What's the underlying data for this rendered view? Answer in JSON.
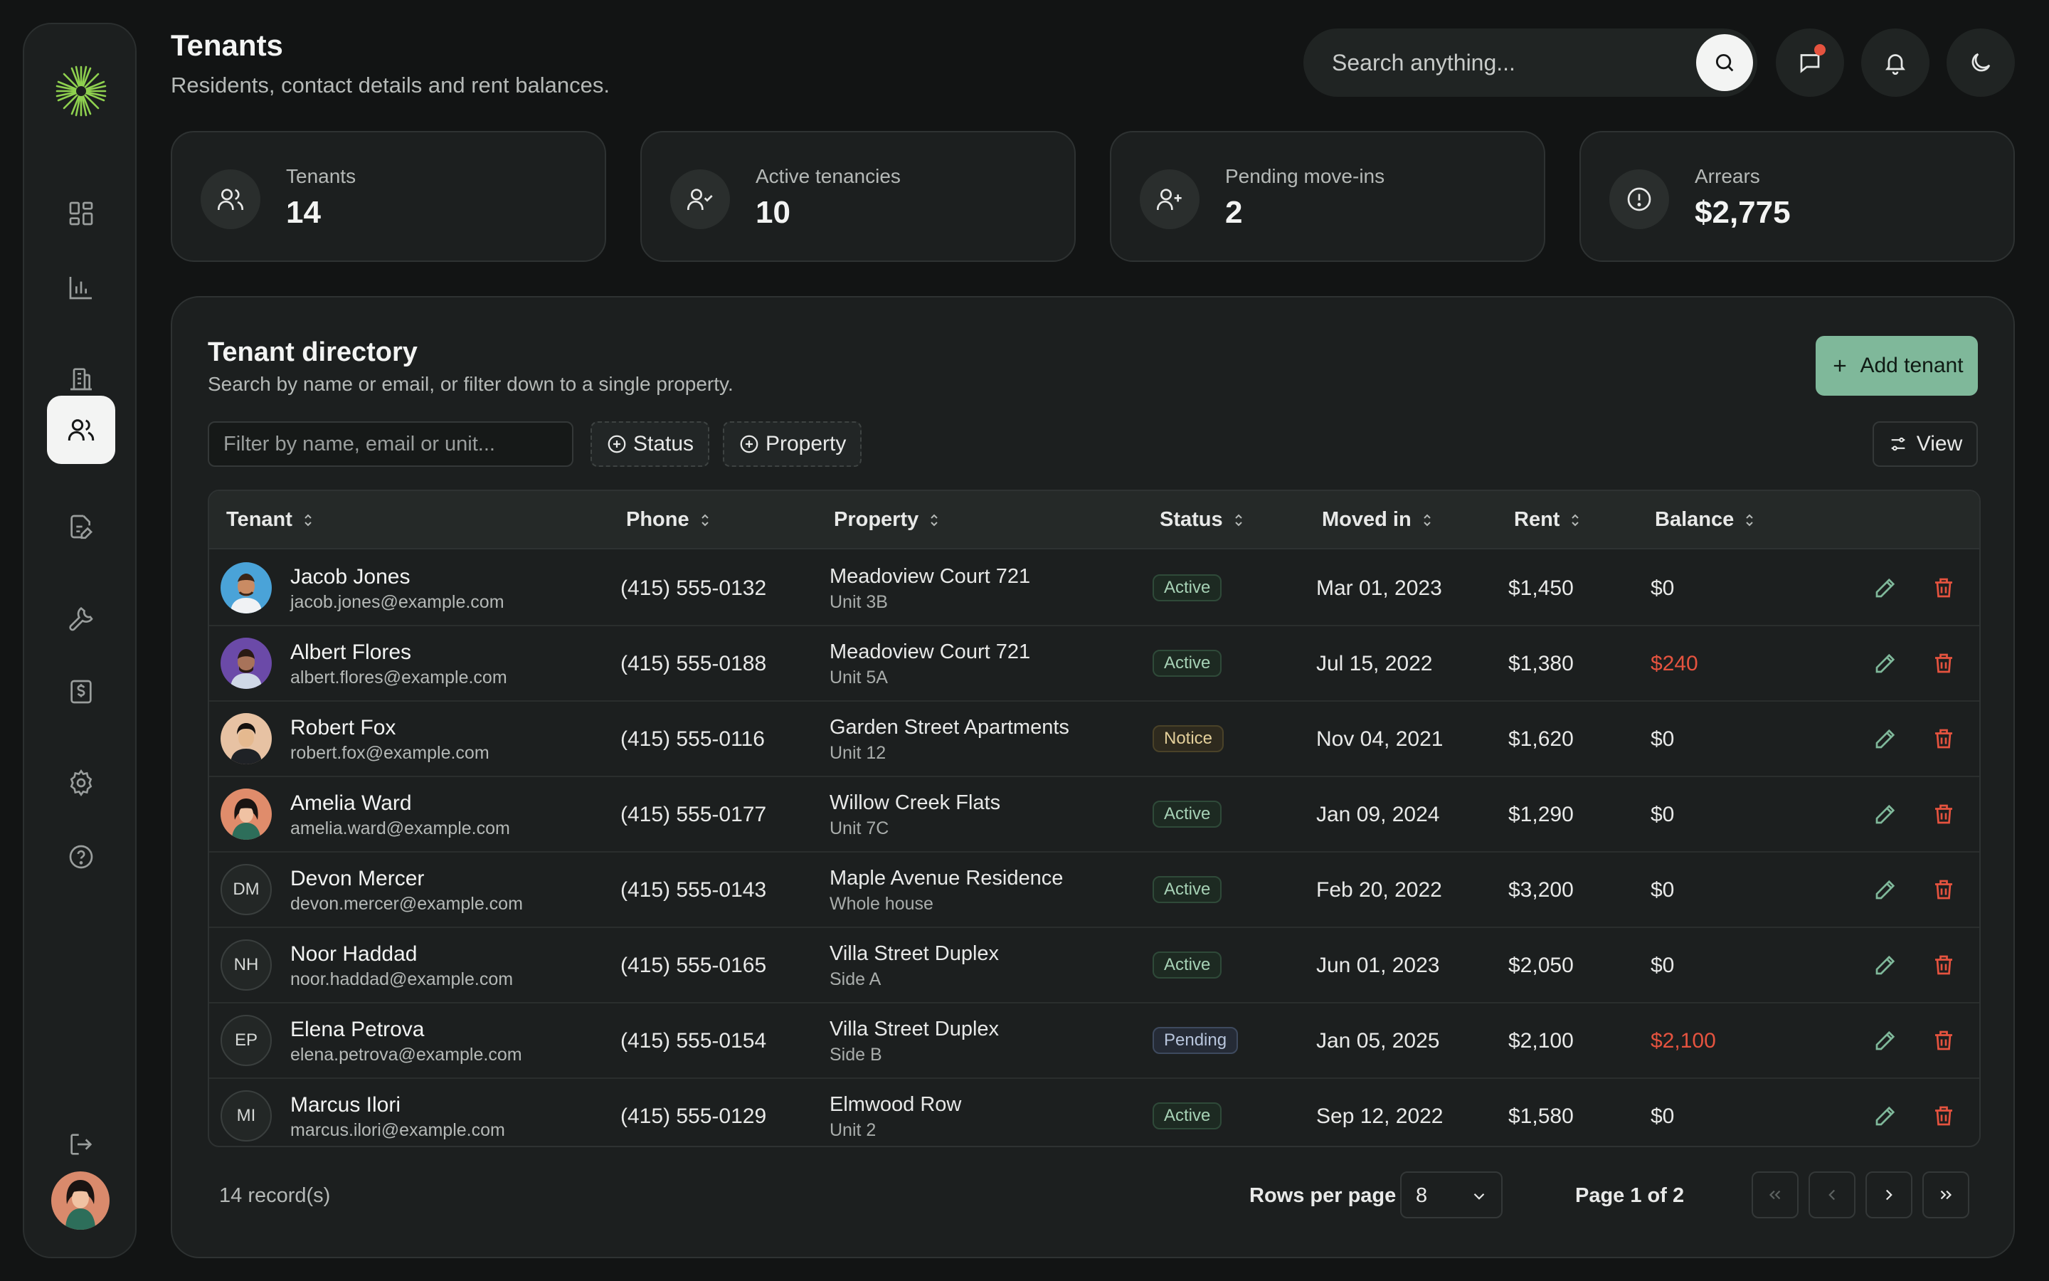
{
  "header": {
    "title": "Tenants",
    "subtitle": "Residents, contact details and rent balances.",
    "search_placeholder": "Search anything..."
  },
  "sidebar": {
    "items": [
      {
        "name": "dashboard",
        "icon": "grid-icon"
      },
      {
        "name": "analytics",
        "icon": "bar-chart-icon"
      },
      {
        "name": "properties",
        "icon": "building-icon"
      },
      {
        "name": "tenants",
        "icon": "users-icon",
        "active": true
      },
      {
        "name": "leases",
        "icon": "document-edit-icon"
      },
      {
        "name": "maintenance",
        "icon": "wrench-icon"
      },
      {
        "name": "payments",
        "icon": "receipt-dollar-icon"
      },
      {
        "name": "settings",
        "icon": "gear-icon"
      },
      {
        "name": "help",
        "icon": "help-circle-icon"
      },
      {
        "name": "logout",
        "icon": "logout-icon"
      }
    ]
  },
  "stats": [
    {
      "label": "Tenants",
      "value": "14",
      "icon": "users-icon"
    },
    {
      "label": "Active tenancies",
      "value": "10",
      "icon": "user-check-icon"
    },
    {
      "label": "Pending move-ins",
      "value": "2",
      "icon": "user-plus-icon"
    },
    {
      "label": "Arrears",
      "value": "$2,775",
      "icon": "alert-circle-icon"
    }
  ],
  "directory": {
    "title": "Tenant directory",
    "subtitle": "Search by name or email, or filter down to a single property.",
    "add_label": "Add tenant",
    "filter_placeholder": "Filter by name, email or unit...",
    "status_chip": "Status",
    "property_chip": "Property",
    "view_label": "View",
    "columns": [
      "Tenant",
      "Phone",
      "Property",
      "Status",
      "Moved in",
      "Rent",
      "Balance"
    ],
    "rows": [
      {
        "name": "Jacob Jones",
        "email": "jacob.jones@example.com",
        "phone": "(415) 555-0132",
        "property": "Meadoview Court 721",
        "unit": "Unit 3B",
        "status": "Active",
        "moved": "Mar 01, 2023",
        "rent": "$1,450",
        "balance": "$0",
        "avatar": "photo",
        "due": false
      },
      {
        "name": "Albert Flores",
        "email": "albert.flores@example.com",
        "phone": "(415) 555-0188",
        "property": "Meadoview Court 721",
        "unit": "Unit 5A",
        "status": "Active",
        "moved": "Jul 15, 2022",
        "rent": "$1,380",
        "balance": "$240",
        "avatar": "photo",
        "due": true
      },
      {
        "name": "Robert Fox",
        "email": "robert.fox@example.com",
        "phone": "(415) 555-0116",
        "property": "Garden Street Apartments",
        "unit": "Unit 12",
        "status": "Notice",
        "moved": "Nov 04, 2021",
        "rent": "$1,620",
        "balance": "$0",
        "avatar": "photo",
        "due": false
      },
      {
        "name": "Amelia Ward",
        "email": "amelia.ward@example.com",
        "phone": "(415) 555-0177",
        "property": "Willow Creek Flats",
        "unit": "Unit 7C",
        "status": "Active",
        "moved": "Jan 09, 2024",
        "rent": "$1,290",
        "balance": "$0",
        "avatar": "photo",
        "due": false
      },
      {
        "name": "Devon Mercer",
        "email": "devon.mercer@example.com",
        "phone": "(415) 555-0143",
        "property": "Maple Avenue Residence",
        "unit": "Whole house",
        "status": "Active",
        "moved": "Feb 20, 2022",
        "rent": "$3,200",
        "balance": "$0",
        "initials": "DM",
        "due": false
      },
      {
        "name": "Noor Haddad",
        "email": "noor.haddad@example.com",
        "phone": "(415) 555-0165",
        "property": "Villa Street Duplex",
        "unit": "Side A",
        "status": "Active",
        "moved": "Jun 01, 2023",
        "rent": "$2,050",
        "balance": "$0",
        "initials": "NH",
        "due": false
      },
      {
        "name": "Elena Petrova",
        "email": "elena.petrova@example.com",
        "phone": "(415) 555-0154",
        "property": "Villa Street Duplex",
        "unit": "Side B",
        "status": "Pending",
        "moved": "Jan 05, 2025",
        "rent": "$2,100",
        "balance": "$2,100",
        "initials": "EP",
        "due": true
      },
      {
        "name": "Marcus Ilori",
        "email": "marcus.ilori@example.com",
        "phone": "(415) 555-0129",
        "property": "Elmwood Row",
        "unit": "Unit 2",
        "status": "Active",
        "moved": "Sep 12, 2022",
        "rent": "$1,580",
        "balance": "$0",
        "initials": "MI",
        "due": false
      }
    ]
  },
  "footer": {
    "records": "14 record(s)",
    "rows_per_page_label": "Rows per page",
    "rows_per_page": "8",
    "page_info": "Page 1 of 2"
  },
  "colors": {
    "accent": "#7fb89a",
    "danger": "#e5533f",
    "background": "#121414",
    "surface": "#1c1f1f"
  }
}
